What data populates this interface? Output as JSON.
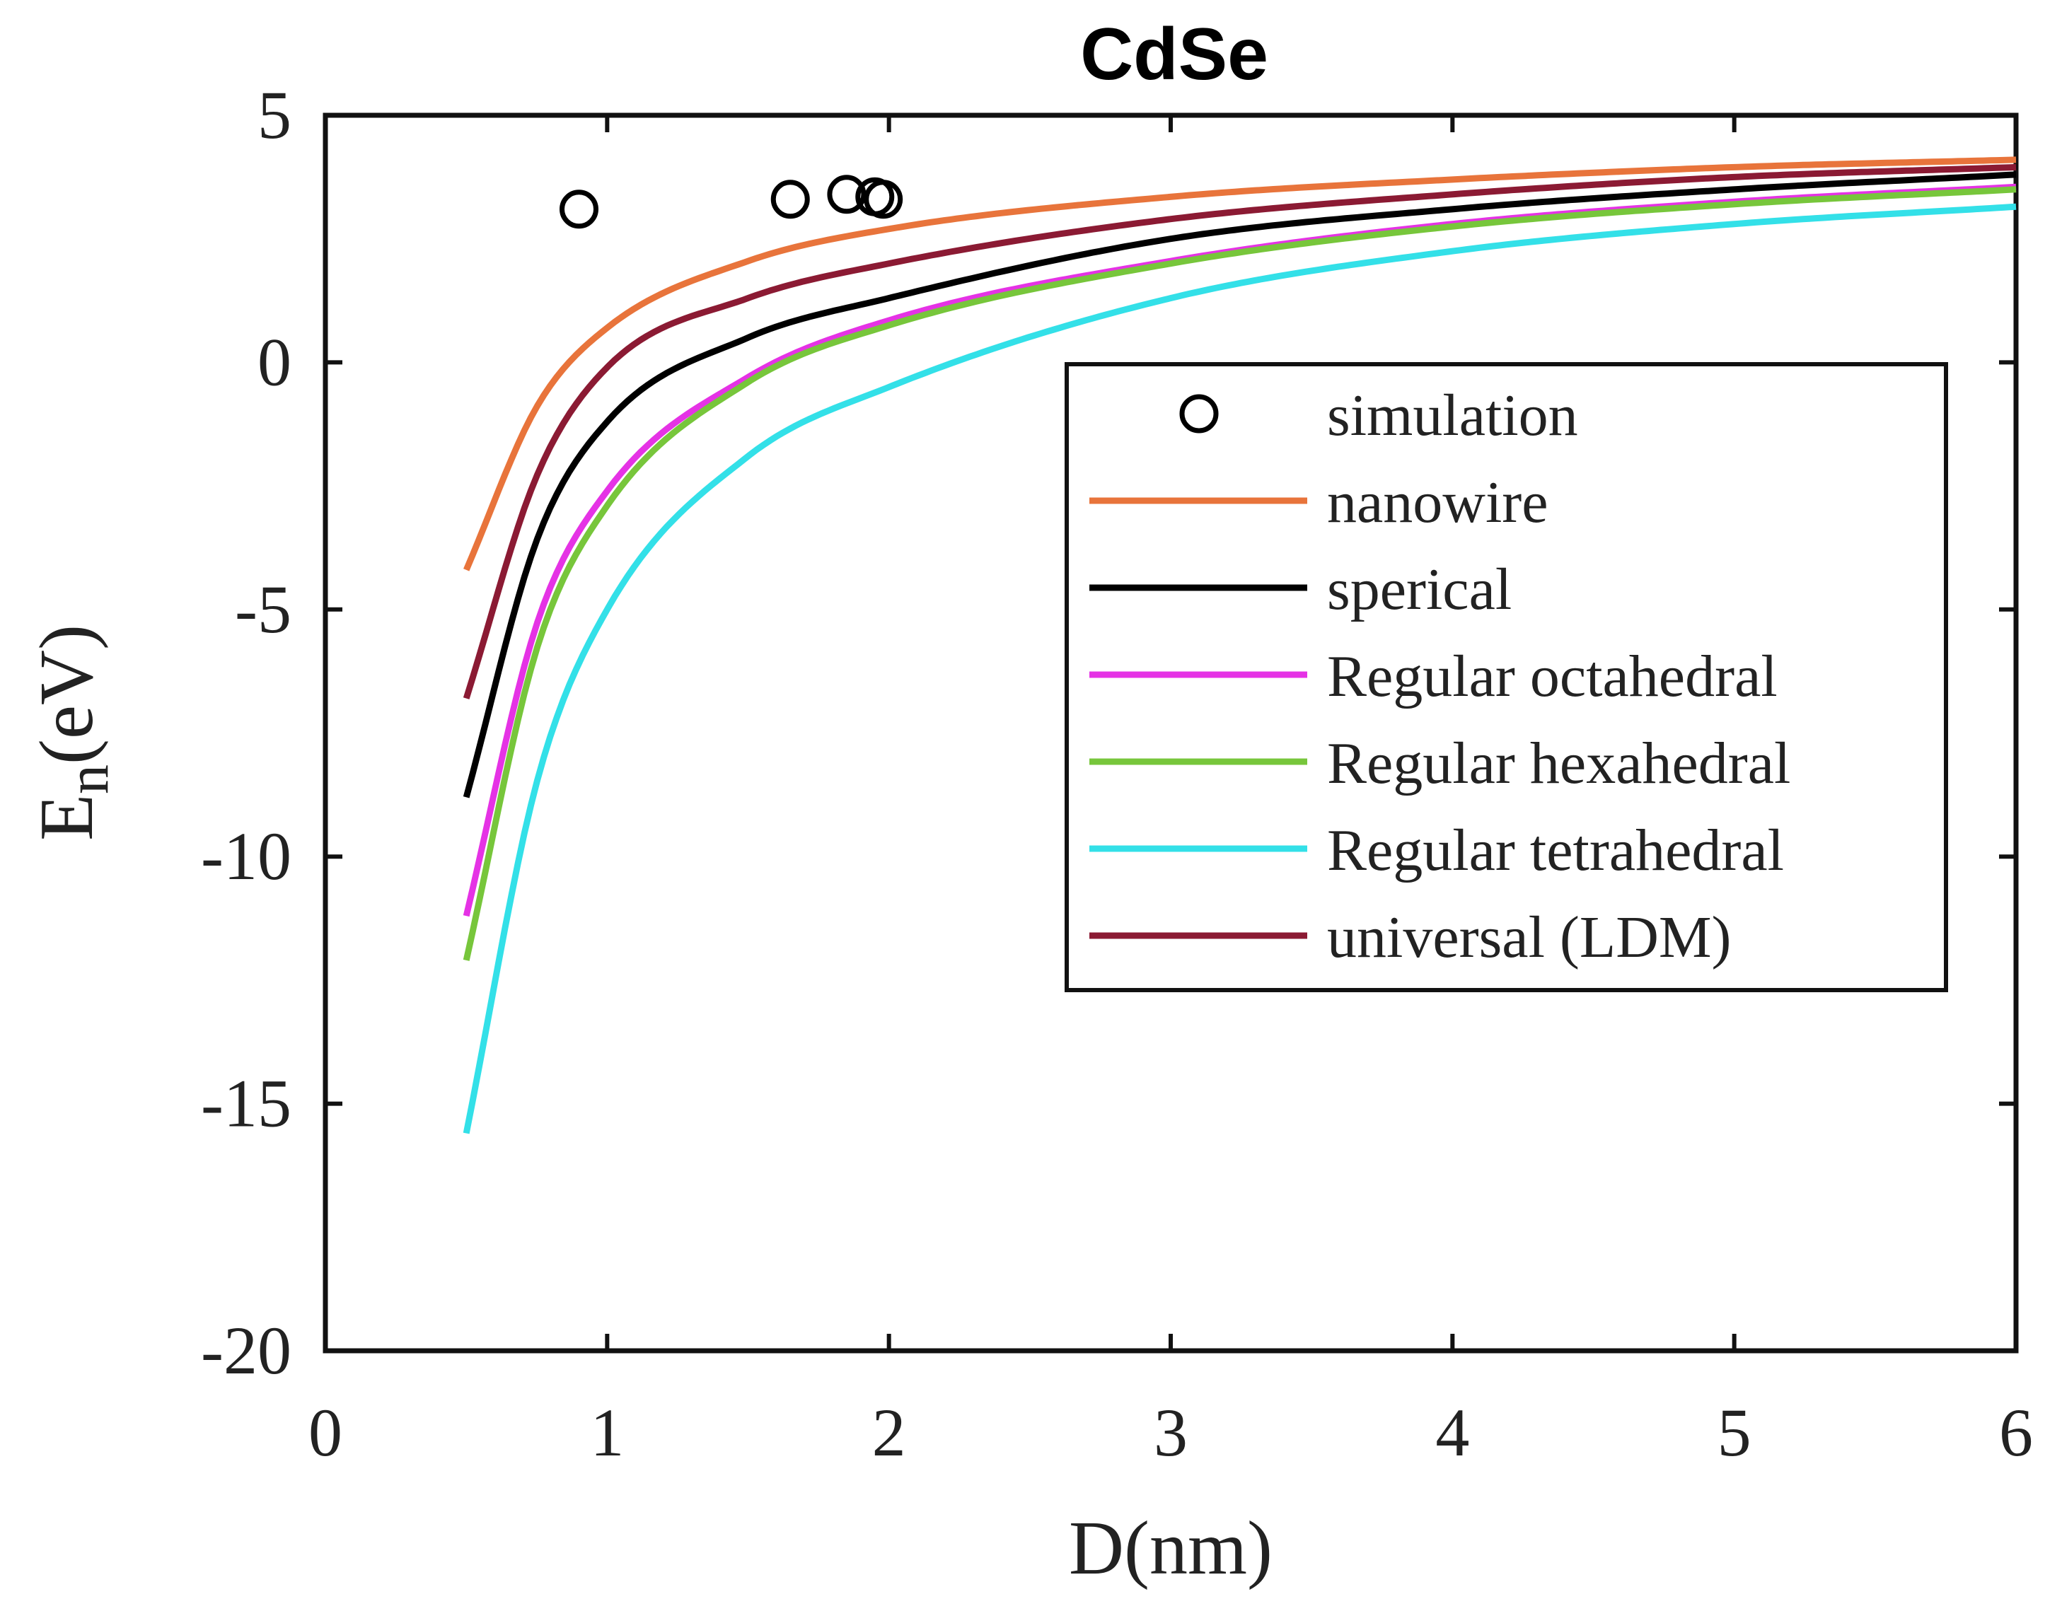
{
  "chart_data": {
    "type": "line",
    "title": "CdSe",
    "xlabel": "D(nm)",
    "ylabel_main": "E",
    "ylabel_sub": "n",
    "ylabel_tail": "(eV)",
    "xlim": [
      0,
      6
    ],
    "ylim": [
      -20,
      5
    ],
    "xticks": [
      0,
      1,
      2,
      3,
      4,
      5,
      6
    ],
    "yticks": [
      5,
      0,
      -5,
      -10,
      -15,
      -20
    ],
    "grid": false,
    "legend_position": "right",
    "scatter": {
      "name": "simulation",
      "color": "#000000",
      "x": [
        0.9,
        1.65,
        1.85,
        1.95,
        1.98
      ],
      "y": [
        3.1,
        3.3,
        3.4,
        3.35,
        3.3
      ]
    },
    "series": [
      {
        "name": "nanowire",
        "color": "#e8743b",
        "x": [
          0.5,
          0.75,
          1.0,
          1.5,
          2.0,
          3.0,
          4.0,
          5.0,
          6.0
        ],
        "y": [
          -4.2,
          -0.9,
          0.7,
          2.05,
          2.7,
          3.35,
          3.7,
          3.95,
          4.1
        ]
      },
      {
        "name": "sperical",
        "color": "#000000",
        "x": [
          0.5,
          0.75,
          1.0,
          1.5,
          2.0,
          3.0,
          4.0,
          5.0,
          6.0
        ],
        "y": [
          -8.8,
          -3.6,
          -1.2,
          0.5,
          1.3,
          2.5,
          3.1,
          3.5,
          3.8
        ]
      },
      {
        "name": "Regular octahedral",
        "color": "#e532e5",
        "x": [
          0.5,
          0.75,
          1.0,
          1.5,
          2.0,
          3.0,
          4.0,
          5.0,
          6.0
        ],
        "y": [
          -11.2,
          -5.3,
          -2.6,
          -0.3,
          0.85,
          2.05,
          2.8,
          3.25,
          3.55
        ]
      },
      {
        "name": "Regular hexahedral",
        "color": "#77c63b",
        "x": [
          0.5,
          0.75,
          1.0,
          1.5,
          2.0,
          3.0,
          4.0,
          5.0,
          6.0
        ],
        "y": [
          -12.1,
          -5.8,
          -2.9,
          -0.4,
          0.75,
          2.0,
          2.75,
          3.2,
          3.5
        ]
      },
      {
        "name": "Regular tetrahedral",
        "color": "#33e0e8",
        "x": [
          0.5,
          0.75,
          1.0,
          1.5,
          2.0,
          3.0,
          4.0,
          5.0,
          6.0
        ],
        "y": [
          -15.6,
          -8.5,
          -5.0,
          -1.9,
          -0.5,
          1.3,
          2.25,
          2.8,
          3.15
        ]
      },
      {
        "name": "universal (LDM)",
        "color": "#8b1a33",
        "x": [
          0.5,
          0.75,
          1.0,
          1.5,
          2.0,
          3.0,
          4.0,
          5.0,
          6.0
        ],
        "y": [
          -6.8,
          -2.3,
          -0.1,
          1.3,
          2.0,
          2.9,
          3.4,
          3.75,
          3.95
        ]
      }
    ]
  }
}
